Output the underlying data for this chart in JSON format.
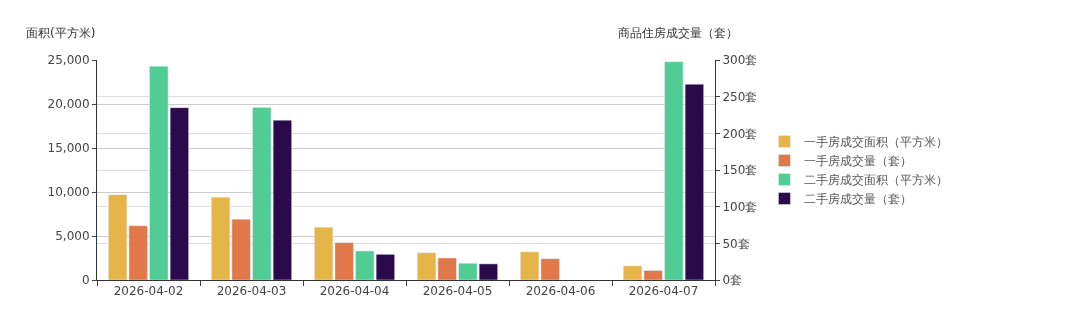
{
  "chart_data": {
    "type": "bar",
    "categories": [
      "2026-04-02",
      "2026-04-03",
      "2026-04-04",
      "2026-04-05",
      "2026-04-06",
      "2026-04-07"
    ],
    "ylabel": "面积(平方米)",
    "y2label": "商品住房成交量（套）",
    "ylim": [
      0,
      25000
    ],
    "yticks": [
      {
        "value": 0,
        "label": "0"
      },
      {
        "value": 5000,
        "label": "5,000"
      },
      {
        "value": 10000,
        "label": "10,000"
      },
      {
        "value": 15000,
        "label": "15,000"
      },
      {
        "value": 20000,
        "label": "20,000"
      },
      {
        "value": 25000,
        "label": "25,000"
      }
    ],
    "y2lim": [
      0,
      300
    ],
    "y2ticks": [
      {
        "value": 0,
        "label": "0套"
      },
      {
        "value": 50,
        "label": "50套"
      },
      {
        "value": 100,
        "label": "100套"
      },
      {
        "value": 150,
        "label": "150套"
      },
      {
        "value": 200,
        "label": "200套"
      },
      {
        "value": 250,
        "label": "250套"
      },
      {
        "value": 300,
        "label": "300套"
      }
    ],
    "series": [
      {
        "name": "一手房成交面积（平方米）",
        "color": "#e5b54a",
        "values": [
          9700,
          9400,
          6000,
          3100,
          3200,
          1600
        ]
      },
      {
        "name": "一手房成交量（套）",
        "color": "#e0784a",
        "axis": "y2",
        "values": [
          74,
          83,
          51,
          30,
          29,
          13
        ]
      },
      {
        "name": "二手房成交面积（平方米）",
        "color": "#52cc95",
        "values": [
          24300,
          19600,
          3300,
          1900,
          null,
          24800
        ]
      },
      {
        "name": "二手房成交量（套）",
        "color": "#2a0a4a",
        "axis": "y2",
        "values": [
          235,
          218,
          35,
          22,
          null,
          267
        ]
      }
    ],
    "grid": true,
    "legend": "right"
  }
}
